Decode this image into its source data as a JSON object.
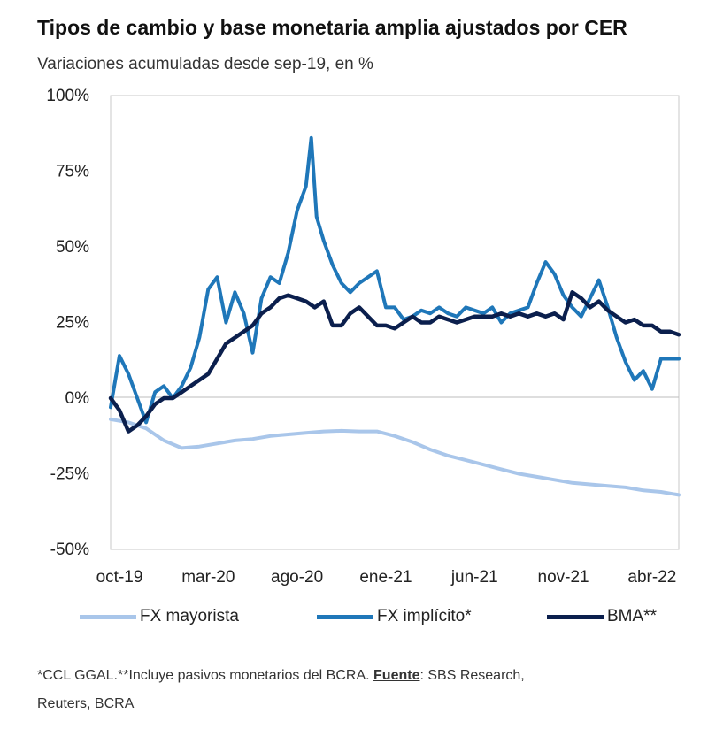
{
  "chart_data": {
    "type": "line",
    "title": "Tipos de cambio y base monetaria amplia ajustados por CER",
    "subtitle": "Variaciones acumuladas desde sep-19, en %",
    "xlabel": "",
    "ylabel": "",
    "x_ticks": [
      "oct-19",
      "mar-20",
      "ago-20",
      "ene-21",
      "jun-21",
      "nov-21",
      "abr-22"
    ],
    "y_ticks": [
      "100%",
      "75%",
      "50%",
      "25%",
      "0%",
      "-25%",
      "-50%"
    ],
    "ylim": [
      -50,
      100
    ],
    "x_domain_months": [
      0,
      32
    ],
    "series": [
      {
        "name": "FX mayorista",
        "color": "#a9c6ea",
        "x": [
          0,
          1,
          2,
          3,
          4,
          5,
          6,
          7,
          8,
          9,
          10,
          11,
          12,
          13,
          14,
          15,
          16,
          17,
          18,
          19,
          20,
          21,
          22,
          23,
          24,
          25,
          26,
          27,
          28,
          29,
          30,
          31,
          32
        ],
        "values": [
          -7,
          -8,
          -10,
          -14,
          -16.5,
          -16,
          -15,
          -14,
          -13.5,
          -12.5,
          -12,
          -11.5,
          -11,
          -10.8,
          -11,
          -11,
          -12.5,
          -14.5,
          -17,
          -19,
          -20.5,
          -22,
          -23.5,
          -25,
          -26,
          -27,
          -28,
          -28.5,
          -29,
          -29.5,
          -30.5,
          -31,
          -32
        ]
      },
      {
        "name": "FX implícito*",
        "color": "#1f77b9",
        "x": [
          0,
          0.5,
          1,
          1.5,
          2,
          2.5,
          3,
          3.5,
          4,
          4.5,
          5,
          5.5,
          6,
          6.5,
          7,
          7.5,
          8,
          8.5,
          9,
          9.5,
          10,
          10.5,
          11,
          11.3,
          11.6,
          12,
          12.5,
          13,
          13.5,
          14,
          14.5,
          15,
          15.5,
          16,
          16.5,
          17,
          17.5,
          18,
          18.5,
          19,
          19.5,
          20,
          20.5,
          21,
          21.5,
          22,
          22.5,
          23,
          23.5,
          24,
          24.5,
          25,
          25.5,
          26,
          26.5,
          27,
          27.5,
          28,
          28.5,
          29,
          29.5,
          30,
          30.5,
          31,
          31.5,
          32
        ],
        "values": [
          -3,
          14,
          8,
          0,
          -8,
          2,
          4,
          0,
          4,
          10,
          20,
          36,
          40,
          25,
          35,
          28,
          15,
          33,
          40,
          38,
          48,
          62,
          70,
          86,
          60,
          52,
          44,
          38,
          35,
          38,
          40,
          42,
          30,
          30,
          26,
          27,
          29,
          28,
          30,
          28,
          27,
          30,
          29,
          28,
          30,
          25,
          28,
          29,
          30,
          38,
          45,
          41,
          34,
          30,
          27,
          33,
          39,
          30,
          20,
          12,
          6,
          9,
          3,
          13,
          13,
          13
        ]
      },
      {
        "name": "BMA**",
        "color": "#0b1f4d",
        "x": [
          0,
          0.5,
          1,
          1.5,
          2,
          2.5,
          3,
          3.5,
          4,
          4.5,
          5,
          5.5,
          6,
          6.5,
          7,
          7.5,
          8,
          8.5,
          9,
          9.5,
          10,
          10.5,
          11,
          11.5,
          12,
          12.5,
          13,
          13.5,
          14,
          14.5,
          15,
          15.5,
          16,
          16.5,
          17,
          17.5,
          18,
          18.5,
          19,
          19.5,
          20,
          20.5,
          21,
          21.5,
          22,
          22.5,
          23,
          23.5,
          24,
          24.5,
          25,
          25.5,
          26,
          26.5,
          27,
          27.5,
          28,
          28.5,
          29,
          29.5,
          30,
          30.5,
          31,
          31.5,
          32
        ],
        "values": [
          0,
          -4,
          -11,
          -9,
          -6,
          -2,
          0,
          0,
          2,
          4,
          6,
          8,
          13,
          18,
          20,
          22,
          24,
          28,
          30,
          33,
          34,
          33,
          32,
          30,
          32,
          24,
          24,
          28,
          30,
          27,
          24,
          24,
          23,
          25,
          27,
          25,
          25,
          27,
          26,
          25,
          26,
          27,
          27,
          27,
          28,
          27,
          28,
          27,
          28,
          27,
          28,
          26,
          35,
          33,
          30,
          32,
          29,
          27,
          25,
          26,
          24,
          24,
          22,
          22,
          21
        ]
      }
    ]
  },
  "legend": [
    {
      "label": "FX mayorista"
    },
    {
      "label": "FX implícito*"
    },
    {
      "label": "BMA**"
    }
  ],
  "footnote": {
    "part1": "*CCL GGAL.**Incluye pasivos monetarios del BCRA. ",
    "source_label": "Fuente",
    "part2": ": SBS Research,",
    "line2": "Reuters, BCRA"
  }
}
